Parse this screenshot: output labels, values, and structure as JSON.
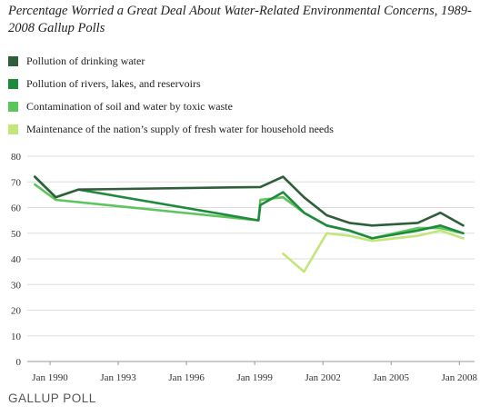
{
  "header": {
    "title": "Percentage Worried a Great Deal About Water-Related Environmental Concerns, 1989-2008 Gallup Polls"
  },
  "footer": {
    "logo_text": "GALLUP POLL"
  },
  "colors": {
    "drinking": "#2e5e3a",
    "rivers": "#1e8a3c",
    "soil": "#5cc55c",
    "supply": "#c2e67a",
    "grid": "#dddddd",
    "axis": "#999999"
  },
  "chart_data": {
    "type": "line",
    "title": "Percentage Worried a Great Deal About Water-Related Environmental Concerns, 1989-2008 Gallup Polls",
    "xlabel": "",
    "ylabel": "",
    "ylim": [
      0,
      80
    ],
    "yticks": [
      0,
      10,
      20,
      30,
      40,
      50,
      60,
      70,
      80
    ],
    "xlim": [
      "1989-01",
      "2008-09"
    ],
    "xticks": [
      {
        "date": "1990-01",
        "label": "Jan 1990"
      },
      {
        "date": "1993-01",
        "label": "Jan 1993"
      },
      {
        "date": "1996-01",
        "label": "Jan 1996"
      },
      {
        "date": "1999-01",
        "label": "Jan 1999"
      },
      {
        "date": "2002-01",
        "label": "Jan 2002"
      },
      {
        "date": "2005-01",
        "label": "Jan 2005"
      },
      {
        "date": "2008-01",
        "label": "Jan 2008"
      }
    ],
    "grid": true,
    "legend_position": "top",
    "series": [
      {
        "name": "Pollution of drinking water",
        "color": "#2e5e3a",
        "points": [
          {
            "x": "1989-05",
            "y": 72
          },
          {
            "x": "1990-04",
            "y": 64
          },
          {
            "x": "1991-04",
            "y": 67
          },
          {
            "x": "1999-04",
            "y": 68
          },
          {
            "x": "2000-04",
            "y": 72
          },
          {
            "x": "2001-03",
            "y": 64
          },
          {
            "x": "2002-03",
            "y": 57
          },
          {
            "x": "2003-03",
            "y": 54
          },
          {
            "x": "2004-03",
            "y": 53
          },
          {
            "x": "2006-03",
            "y": 54
          },
          {
            "x": "2007-03",
            "y": 58
          },
          {
            "x": "2008-03",
            "y": 53
          }
        ]
      },
      {
        "name": "Pollution of rivers, lakes, and reservoirs",
        "color": "#1e8a3c",
        "points": [
          {
            "x": "1989-05",
            "y": 72
          },
          {
            "x": "1990-04",
            "y": 64
          },
          {
            "x": "1991-04",
            "y": 67
          },
          {
            "x": "1999-03",
            "y": 55
          },
          {
            "x": "1999-04",
            "y": 61
          },
          {
            "x": "2000-04",
            "y": 66
          },
          {
            "x": "2001-03",
            "y": 58
          },
          {
            "x": "2002-03",
            "y": 53
          },
          {
            "x": "2003-03",
            "y": 51
          },
          {
            "x": "2004-03",
            "y": 48
          },
          {
            "x": "2006-03",
            "y": 51
          },
          {
            "x": "2007-03",
            "y": 53
          },
          {
            "x": "2008-03",
            "y": 50
          }
        ]
      },
      {
        "name": "Contamination of soil and water by toxic waste",
        "color": "#5cc55c",
        "points": [
          {
            "x": "1989-05",
            "y": 69
          },
          {
            "x": "1990-04",
            "y": 63
          },
          {
            "x": "1999-03",
            "y": 55
          },
          {
            "x": "1999-04",
            "y": 63
          },
          {
            "x": "2000-04",
            "y": 64
          },
          {
            "x": "2001-03",
            "y": 58
          },
          {
            "x": "2002-03",
            "y": 53
          },
          {
            "x": "2003-03",
            "y": 51
          },
          {
            "x": "2004-03",
            "y": 48
          },
          {
            "x": "2006-03",
            "y": 52
          },
          {
            "x": "2007-03",
            "y": 52
          },
          {
            "x": "2008-03",
            "y": 50
          }
        ]
      },
      {
        "name": "Maintenance of the nation’s supply of fresh water for household needs",
        "color": "#c2e67a",
        "points": [
          {
            "x": "2000-04",
            "y": 42
          },
          {
            "x": "2001-03",
            "y": 35
          },
          {
            "x": "2002-03",
            "y": 50
          },
          {
            "x": "2003-03",
            "y": 49
          },
          {
            "x": "2004-03",
            "y": 47
          },
          {
            "x": "2006-03",
            "y": 49
          },
          {
            "x": "2007-03",
            "y": 51
          },
          {
            "x": "2008-03",
            "y": 48
          }
        ]
      }
    ]
  }
}
